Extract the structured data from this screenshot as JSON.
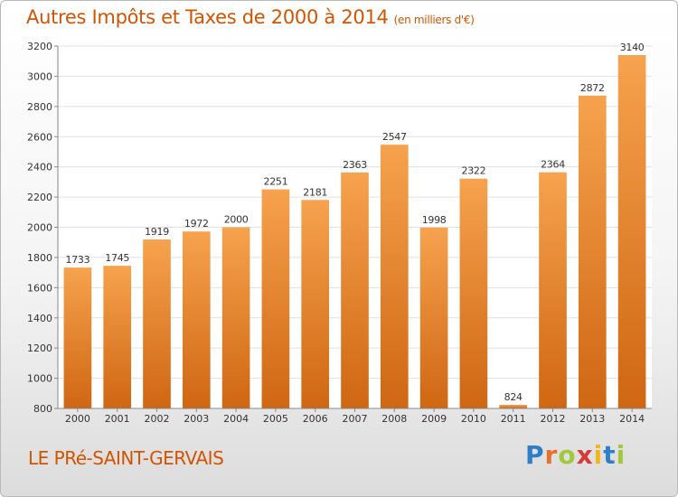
{
  "title": "Autres Impôts et Taxes de 2000 à 2014",
  "title_unit": "(en milliers d'€)",
  "city": "LE PRé-SAINT-GERVAIS",
  "logo": {
    "text": "Proxiti",
    "letter_colors": [
      "#2e7fc8",
      "#e8702a",
      "#a0c83a",
      "#d83a3a",
      "#f2b51c",
      "#2e7fc8",
      "#a0c83a"
    ]
  },
  "colors": {
    "bar_top": "#f6a24e",
    "bar_bottom": "#cf6612",
    "title": "#d35400",
    "grid": "#e0e0e0",
    "axis": "#888888"
  },
  "chart_data": {
    "type": "bar",
    "categories": [
      "2000",
      "2001",
      "2002",
      "2003",
      "2004",
      "2005",
      "2006",
      "2007",
      "2008",
      "2009",
      "2010",
      "2011",
      "2012",
      "2013",
      "2014"
    ],
    "values": [
      1733,
      1745,
      1919,
      1972,
      2000,
      2251,
      2181,
      2363,
      2547,
      1998,
      2322,
      824,
      2364,
      2872,
      3140
    ],
    "ylim": [
      800,
      3200
    ],
    "yticks": [
      800,
      1000,
      1200,
      1400,
      1600,
      1800,
      2000,
      2200,
      2400,
      2600,
      2800,
      3000,
      3200
    ],
    "grid": true,
    "xlabel": "",
    "ylabel": ""
  }
}
